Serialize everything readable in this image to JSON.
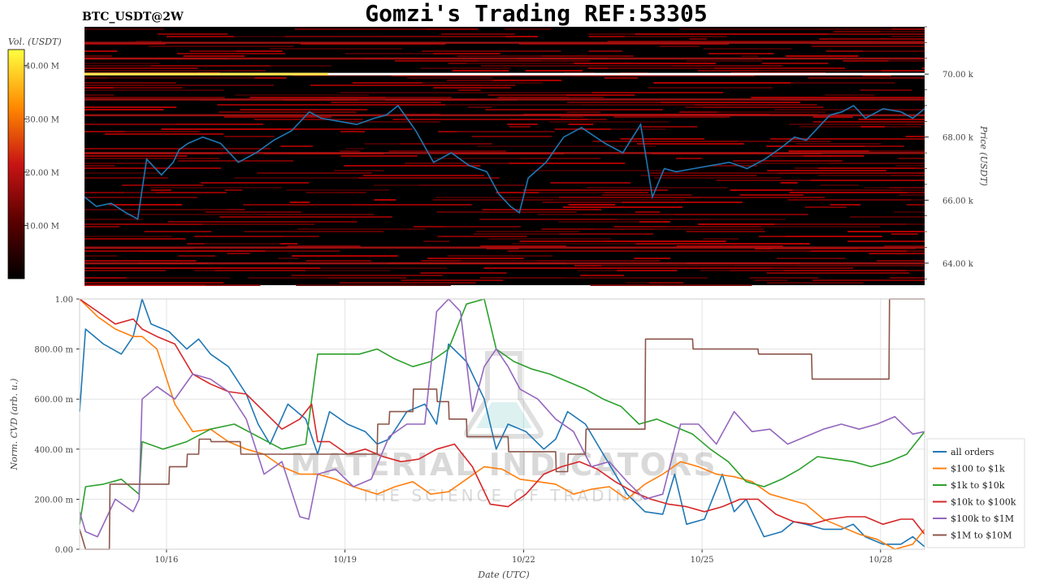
{
  "page": {
    "title": "Gomzi's Trading REF:53305",
    "symbol": "BTC_USDT@2W",
    "watermark_main": "MATERIAL INDICATORS",
    "watermark_sub": "THE SCIENCE OF TRADING"
  },
  "chart_data": [
    {
      "type": "heatmap",
      "title": "",
      "colorbar": {
        "label": "Vol. (USDT)",
        "ticks": [
          "10.00 M",
          "20.00 M",
          "30.00 M",
          "40.00 M"
        ],
        "tick_values": [
          10,
          20,
          30,
          40
        ],
        "range": [
          0,
          43
        ],
        "colormap": [
          "#000000",
          "#5a0000",
          "#c81414",
          "#ff8a00",
          "#ffff40"
        ]
      },
      "ylabel": "Price (USDT)",
      "ylim": [
        63300,
        71500
      ],
      "y_ticks": [
        "64.00 k",
        "66.00 k",
        "68.00 k",
        "70.00 k"
      ],
      "y_tick_values": [
        64000,
        66000,
        68000,
        70000
      ],
      "bright_level_price": 70000,
      "price_series": {
        "name": "",
        "color": "#1f77b4",
        "x": [
          0,
          0.2,
          0.45,
          0.7,
          0.9,
          1.05,
          1.3,
          1.5,
          1.6,
          1.75,
          2.0,
          2.3,
          2.6,
          2.9,
          3.2,
          3.5,
          3.8,
          4.0,
          4.3,
          4.6,
          4.9,
          5.1,
          5.3,
          5.6,
          5.9,
          6.2,
          6.5,
          6.8,
          7.0,
          7.2,
          7.35,
          7.5,
          7.8,
          8.1,
          8.4,
          8.8,
          9.1,
          9.4,
          9.6,
          9.8,
          10.0,
          10.3,
          10.6,
          10.9,
          11.2,
          11.5,
          11.8,
          12.0,
          12.2,
          12.4,
          12.6,
          12.8,
          13.0,
          13.2,
          13.5,
          13.8,
          14.0,
          14.2
        ],
        "values": [
          66100,
          65800,
          65900,
          65600,
          65400,
          67300,
          66800,
          67200,
          67600,
          67800,
          68000,
          67800,
          67200,
          67500,
          67900,
          68200,
          68800,
          68600,
          68500,
          68400,
          68600,
          68700,
          69000,
          68200,
          67200,
          67500,
          67100,
          66900,
          66200,
          65800,
          65600,
          66700,
          67200,
          68000,
          68300,
          67800,
          67500,
          68400,
          66100,
          67000,
          66900,
          67000,
          67100,
          67200,
          67000,
          67300,
          67700,
          68000,
          67900,
          68300,
          68700,
          68800,
          69000,
          68600,
          68900,
          68800,
          68600,
          68900
        ]
      }
    },
    {
      "type": "line",
      "title": "",
      "xlabel": "Date (UTC)",
      "ylabel": "Norm. CVD (arb. u.)",
      "ylim": [
        0,
        1
      ],
      "y_ticks": [
        "0.00",
        "200.00 m",
        "400.00 m",
        "600.00 m",
        "800.00 m",
        "1.00"
      ],
      "y_tick_values": [
        0,
        0.2,
        0.4,
        0.6,
        0.8,
        1.0
      ],
      "x_ticks": [
        "10/16",
        "10/19",
        "10/22",
        "10/25",
        "10/28"
      ],
      "x_tick_values": [
        1.46,
        4.46,
        7.46,
        10.46,
        13.46
      ],
      "xlim": [
        0,
        14.2
      ],
      "grid": true,
      "legend_position": "right",
      "series": [
        {
          "name": "all orders",
          "color": "#1f77b4",
          "x": [
            0,
            0.1,
            0.4,
            0.7,
            0.9,
            1.05,
            1.2,
            1.5,
            1.8,
            2.0,
            2.2,
            2.5,
            2.8,
            3.0,
            3.2,
            3.5,
            3.8,
            4.0,
            4.2,
            4.5,
            4.8,
            5.0,
            5.2,
            5.5,
            5.8,
            6.0,
            6.2,
            6.5,
            6.8,
            7.0,
            7.2,
            7.5,
            7.8,
            8.0,
            8.2,
            8.5,
            8.8,
            9.0,
            9.2,
            9.5,
            9.8,
            10.0,
            10.2,
            10.5,
            10.8,
            11.0,
            11.2,
            11.5,
            11.8,
            12.0,
            12.2,
            12.5,
            12.8,
            13.0,
            13.2,
            13.5,
            13.8,
            14.0,
            14.2
          ],
          "values": [
            0.55,
            0.88,
            0.82,
            0.78,
            0.85,
            1.0,
            0.9,
            0.87,
            0.8,
            0.84,
            0.78,
            0.73,
            0.62,
            0.5,
            0.42,
            0.58,
            0.52,
            0.38,
            0.55,
            0.5,
            0.47,
            0.42,
            0.44,
            0.55,
            0.58,
            0.5,
            0.82,
            0.75,
            0.6,
            0.4,
            0.5,
            0.47,
            0.4,
            0.44,
            0.55,
            0.5,
            0.38,
            0.3,
            0.22,
            0.15,
            0.14,
            0.3,
            0.1,
            0.12,
            0.3,
            0.15,
            0.2,
            0.05,
            0.07,
            0.11,
            0.1,
            0.08,
            0.08,
            0.1,
            0.05,
            0.02,
            0.02,
            0.05,
            0.01
          ]
        },
        {
          "name": "$100 to $1k",
          "color": "#ff7f0e",
          "x": [
            0,
            0.3,
            0.6,
            0.9,
            1.05,
            1.3,
            1.6,
            1.9,
            2.2,
            2.5,
            2.8,
            3.1,
            3.4,
            3.7,
            4.0,
            4.3,
            4.6,
            5.0,
            5.3,
            5.6,
            5.9,
            6.2,
            6.5,
            6.8,
            7.1,
            7.4,
            7.7,
            8.0,
            8.3,
            8.6,
            8.9,
            9.2,
            9.5,
            9.8,
            10.1,
            10.4,
            10.7,
            11.0,
            11.3,
            11.6,
            11.9,
            12.2,
            12.5,
            12.8,
            13.1,
            13.4,
            13.7,
            14.0,
            14.2
          ],
          "values": [
            1.0,
            0.93,
            0.88,
            0.85,
            0.85,
            0.8,
            0.58,
            0.47,
            0.48,
            0.43,
            0.4,
            0.38,
            0.33,
            0.3,
            0.3,
            0.28,
            0.25,
            0.22,
            0.25,
            0.27,
            0.22,
            0.23,
            0.28,
            0.33,
            0.32,
            0.28,
            0.27,
            0.26,
            0.22,
            0.24,
            0.25,
            0.2,
            0.26,
            0.3,
            0.35,
            0.33,
            0.3,
            0.29,
            0.27,
            0.22,
            0.2,
            0.18,
            0.12,
            0.09,
            0.06,
            0.04,
            0.0,
            0.02,
            0.08
          ]
        },
        {
          "name": "$1k to $10k",
          "color": "#2ca02c",
          "x": [
            0,
            0.1,
            0.4,
            0.7,
            1.0,
            1.05,
            1.4,
            1.8,
            2.2,
            2.6,
            3.0,
            3.4,
            3.8,
            4.0,
            4.3,
            4.7,
            5.0,
            5.3,
            5.6,
            5.9,
            6.2,
            6.5,
            6.8,
            7.0,
            7.3,
            7.6,
            7.9,
            8.2,
            8.5,
            8.8,
            9.1,
            9.4,
            9.7,
            10.0,
            10.3,
            10.6,
            10.9,
            11.2,
            11.5,
            11.8,
            12.1,
            12.4,
            12.7,
            13.0,
            13.3,
            13.6,
            13.9,
            14.2
          ],
          "values": [
            0.1,
            0.25,
            0.26,
            0.28,
            0.22,
            0.43,
            0.4,
            0.43,
            0.48,
            0.5,
            0.45,
            0.4,
            0.42,
            0.78,
            0.78,
            0.78,
            0.8,
            0.76,
            0.73,
            0.75,
            0.8,
            0.98,
            1.0,
            0.8,
            0.75,
            0.72,
            0.7,
            0.67,
            0.64,
            0.6,
            0.57,
            0.5,
            0.52,
            0.49,
            0.46,
            0.4,
            0.35,
            0.27,
            0.25,
            0.28,
            0.32,
            0.37,
            0.36,
            0.35,
            0.33,
            0.35,
            0.38,
            0.47
          ]
        },
        {
          "name": "$10k to $100k",
          "color": "#d62728",
          "x": [
            0,
            0.3,
            0.6,
            0.9,
            1.05,
            1.3,
            1.6,
            1.9,
            2.2,
            2.5,
            2.8,
            3.1,
            3.4,
            3.7,
            3.9,
            4.0,
            4.2,
            4.5,
            4.8,
            5.1,
            5.4,
            5.7,
            6.0,
            6.3,
            6.6,
            6.9,
            7.2,
            7.5,
            7.8,
            8.1,
            8.4,
            8.7,
            9.0,
            9.3,
            9.6,
            9.9,
            10.2,
            10.5,
            10.8,
            11.1,
            11.4,
            11.7,
            12.0,
            12.3,
            12.6,
            12.9,
            13.2,
            13.5,
            13.8,
            14.0,
            14.2
          ],
          "values": [
            1.0,
            0.95,
            0.9,
            0.92,
            0.88,
            0.85,
            0.82,
            0.7,
            0.66,
            0.63,
            0.62,
            0.55,
            0.48,
            0.52,
            0.58,
            0.43,
            0.43,
            0.38,
            0.4,
            0.37,
            0.35,
            0.36,
            0.4,
            0.42,
            0.33,
            0.18,
            0.17,
            0.22,
            0.3,
            0.33,
            0.35,
            0.32,
            0.27,
            0.23,
            0.2,
            0.18,
            0.17,
            0.15,
            0.17,
            0.2,
            0.2,
            0.14,
            0.11,
            0.1,
            0.12,
            0.13,
            0.13,
            0.1,
            0.12,
            0.12,
            0.06
          ]
        },
        {
          "name": "$100k to $1M",
          "color": "#9467bd",
          "x": [
            0,
            0.1,
            0.3,
            0.6,
            0.9,
            1.0,
            1.05,
            1.3,
            1.6,
            1.9,
            2.2,
            2.5,
            2.8,
            3.1,
            3.4,
            3.7,
            3.85,
            4.0,
            4.3,
            4.6,
            4.9,
            5.2,
            5.5,
            5.8,
            6.0,
            6.2,
            6.4,
            6.6,
            6.8,
            7.0,
            7.2,
            7.4,
            7.7,
            8.0,
            8.3,
            8.6,
            8.9,
            9.2,
            9.5,
            9.8,
            10.1,
            10.4,
            10.7,
            11.0,
            11.3,
            11.6,
            11.9,
            12.2,
            12.5,
            12.8,
            13.1,
            13.4,
            13.7,
            14.0,
            14.2
          ],
          "values": [
            0.15,
            0.07,
            0.05,
            0.2,
            0.15,
            0.2,
            0.6,
            0.65,
            0.6,
            0.7,
            0.68,
            0.63,
            0.52,
            0.3,
            0.35,
            0.13,
            0.12,
            0.3,
            0.32,
            0.25,
            0.28,
            0.45,
            0.5,
            0.5,
            0.95,
            1.0,
            0.95,
            0.55,
            0.73,
            0.8,
            0.73,
            0.64,
            0.6,
            0.52,
            0.47,
            0.33,
            0.35,
            0.27,
            0.2,
            0.22,
            0.5,
            0.5,
            0.42,
            0.55,
            0.47,
            0.48,
            0.42,
            0.45,
            0.48,
            0.5,
            0.48,
            0.5,
            0.53,
            0.46,
            0.47
          ]
        },
        {
          "name": "$1M to $10M",
          "color": "#8c564b",
          "x": [
            0,
            0.1,
            0.5,
            0.51,
            1.5,
            1.51,
            1.8,
            1.81,
            2.0,
            2.01,
            2.2,
            2.21,
            2.7,
            2.71,
            3.0,
            3.01,
            4.0,
            4.01,
            5.0,
            5.01,
            5.2,
            5.21,
            5.6,
            5.61,
            6.0,
            6.01,
            6.2,
            6.21,
            6.5,
            6.51,
            7.2,
            7.21,
            8.0,
            8.01,
            8.2,
            8.21,
            8.5,
            8.51,
            9.0,
            9.01,
            9.5,
            9.51,
            10.3,
            10.31,
            11.4,
            11.41,
            12.3,
            12.31,
            13.6,
            13.61,
            14.2
          ],
          "values": [
            0.08,
            0.0,
            0.0,
            0.26,
            0.26,
            0.33,
            0.33,
            0.38,
            0.38,
            0.44,
            0.44,
            0.43,
            0.43,
            0.38,
            0.38,
            0.38,
            0.38,
            0.38,
            0.38,
            0.5,
            0.5,
            0.55,
            0.55,
            0.64,
            0.64,
            0.59,
            0.59,
            0.52,
            0.52,
            0.45,
            0.45,
            0.39,
            0.39,
            0.31,
            0.31,
            0.38,
            0.38,
            0.48,
            0.48,
            0.48,
            0.48,
            0.84,
            0.84,
            0.8,
            0.8,
            0.78,
            0.78,
            0.68,
            0.68,
            1.0,
            1.0
          ]
        }
      ]
    }
  ]
}
